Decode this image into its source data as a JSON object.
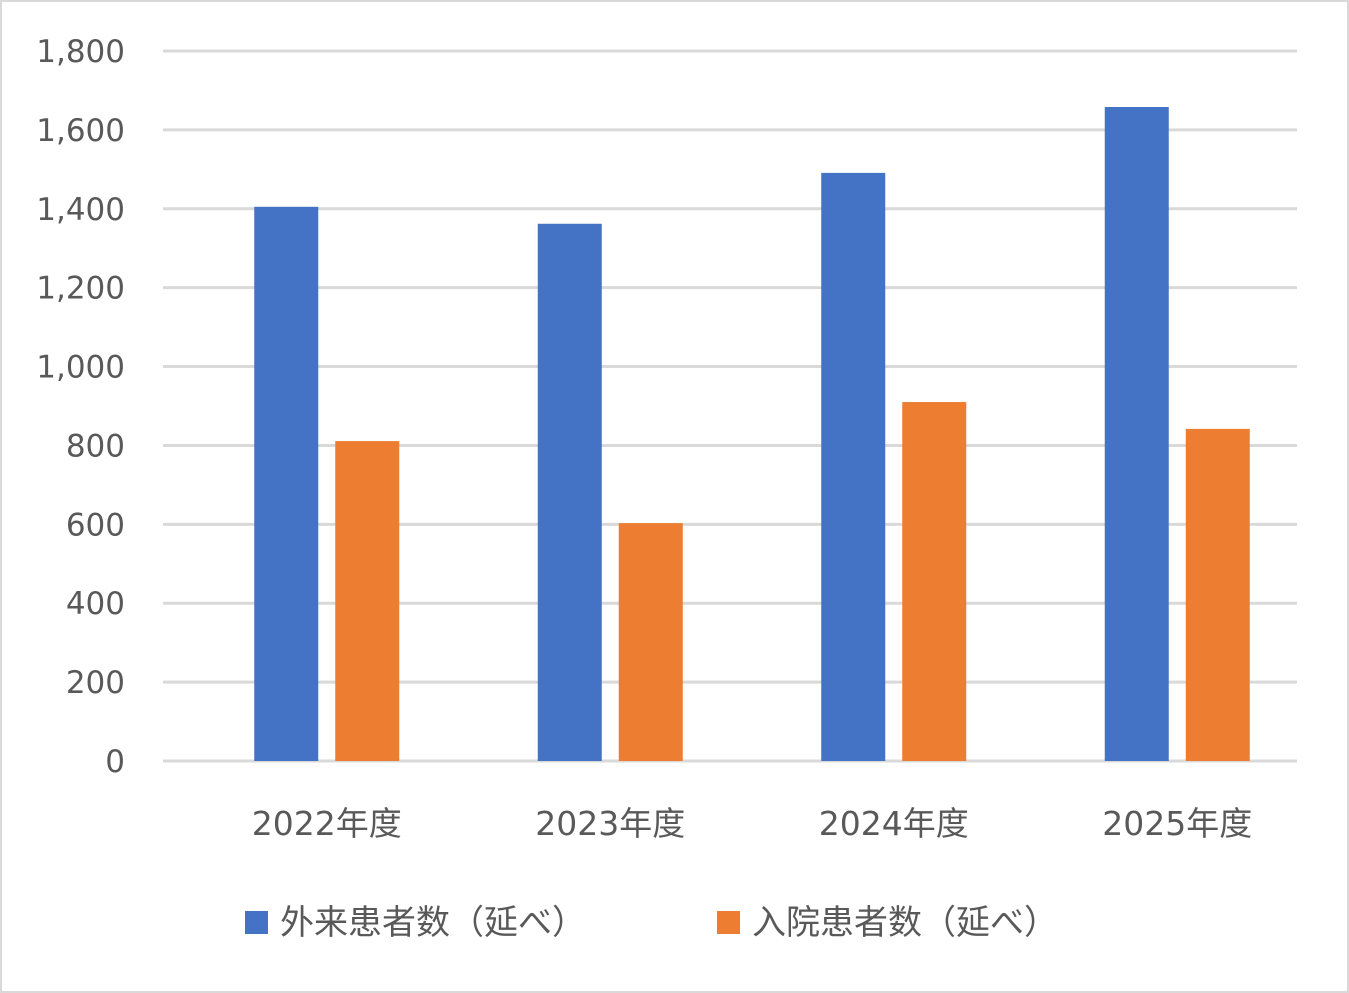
{
  "chart_data": {
    "type": "bar",
    "categories": [
      "2022年度",
      "2023年度",
      "2024年度",
      "2025年度"
    ],
    "series": [
      {
        "name": "外来患者数（延べ）",
        "values": [
          1405,
          1362,
          1491,
          1658
        ],
        "color": "#4472C4"
      },
      {
        "name": "入院患者数（延べ）",
        "values": [
          811,
          603,
          910,
          842
        ],
        "color": "#ED7D31"
      }
    ],
    "ylim": [
      0,
      1800
    ],
    "yticks": [
      0,
      200,
      400,
      600,
      800,
      1000,
      1200,
      1400,
      1600,
      1800
    ],
    "ytick_labels": [
      "0",
      "200",
      "400",
      "600",
      "800",
      "1,000",
      "1,200",
      "1,400",
      "1,600",
      "1,800"
    ],
    "grid": true,
    "legend_position": "bottom",
    "title": "",
    "xlabel": "",
    "ylabel": "",
    "gridline_color": "#d9d9d9",
    "text_color": "#595959"
  }
}
